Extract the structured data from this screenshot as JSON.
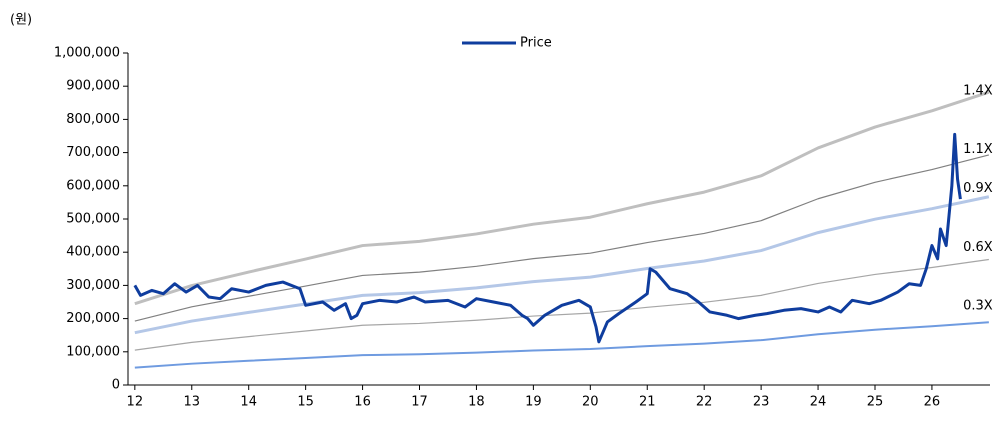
{
  "chart_data": {
    "type": "line",
    "y_label": "(원)",
    "xlim": [
      11.88,
      27.02
    ],
    "xticks": [
      12,
      13,
      14,
      15,
      16,
      17,
      18,
      19,
      20,
      21,
      22,
      23,
      24,
      25,
      26
    ],
    "ylim": [
      0,
      1000000
    ],
    "yticks": [
      0,
      {
        "value": 100000,
        "label": "100,000"
      },
      {
        "value": 200000,
        "label": "200,000"
      },
      {
        "value": 300000,
        "label": "300,000"
      },
      {
        "value": 400000,
        "label": "400,000"
      },
      {
        "value": 500000,
        "label": "500,000"
      },
      {
        "value": 600000,
        "label": "600,000"
      },
      {
        "value": 700000,
        "label": "700,000"
      },
      {
        "value": 800000,
        "label": "800,000"
      },
      {
        "value": 900000,
        "label": "900,000"
      },
      {
        "value": 1000000,
        "label": "1,000,000"
      }
    ],
    "x": [
      12,
      13,
      14,
      15,
      16,
      17,
      18,
      19,
      20,
      21,
      22,
      23,
      24,
      25,
      26,
      27
    ],
    "legend": "top",
    "series": [
      {
        "name": "Price",
        "color": "#0f3d9e",
        "width": 3,
        "x": [
          12.0,
          12.1,
          12.3,
          12.5,
          12.7,
          12.9,
          13.1,
          13.3,
          13.5,
          13.7,
          14.0,
          14.3,
          14.6,
          14.9,
          15.0,
          15.3,
          15.5,
          15.7,
          15.8,
          15.9,
          16.0,
          16.3,
          16.6,
          16.9,
          17.1,
          17.5,
          17.8,
          18.0,
          18.3,
          18.6,
          18.8,
          18.9,
          19.0,
          19.2,
          19.5,
          19.8,
          20.0,
          20.1,
          20.15,
          20.3,
          20.5,
          20.8,
          21.0,
          21.05,
          21.15,
          21.4,
          21.7,
          21.9,
          22.1,
          22.4,
          22.6,
          22.9,
          23.1,
          23.4,
          23.7,
          24.0,
          24.2,
          24.4,
          24.6,
          24.9,
          25.1,
          25.4,
          25.6,
          25.8,
          25.9,
          26.0,
          26.1,
          26.15,
          26.25,
          26.3,
          26.35,
          26.4,
          26.45,
          26.5
        ],
        "values": [
          300000,
          270000,
          285000,
          275000,
          305000,
          280000,
          300000,
          265000,
          260000,
          290000,
          280000,
          300000,
          310000,
          290000,
          240000,
          250000,
          225000,
          245000,
          200000,
          210000,
          245000,
          255000,
          250000,
          265000,
          250000,
          255000,
          235000,
          260000,
          250000,
          240000,
          210000,
          200000,
          180000,
          210000,
          240000,
          255000,
          235000,
          175000,
          130000,
          190000,
          215000,
          250000,
          275000,
          350000,
          340000,
          290000,
          275000,
          250000,
          220000,
          210000,
          200000,
          210000,
          215000,
          225000,
          230000,
          220000,
          235000,
          220000,
          255000,
          245000,
          255000,
          280000,
          305000,
          300000,
          350000,
          420000,
          380000,
          470000,
          420000,
          510000,
          600000,
          755000,
          620000,
          560000
        ]
      },
      {
        "name": "1.4X",
        "color": "#bfbfbf",
        "width": 3,
        "values": [
          245000,
          299600,
          340200,
          379400,
          420000,
          432600,
          455000,
          484400,
          505400,
          546000,
          581000,
          630000,
          714000,
          777000,
          826000,
          882000
        ]
      },
      {
        "name": "1.1X",
        "color": "#808080",
        "width": 1.2,
        "values": [
          192500,
          235400,
          267300,
          298100,
          330000,
          339900,
          357500,
          380600,
          397100,
          429000,
          456500,
          495000,
          561000,
          610500,
          649000,
          693000
        ]
      },
      {
        "name": "0.9X",
        "color": "#b4c7e7",
        "width": 3,
        "values": [
          157500,
          192600,
          218700,
          243900,
          270000,
          278100,
          292500,
          311400,
          324900,
          351000,
          373500,
          405000,
          459000,
          499500,
          531000,
          567000
        ]
      },
      {
        "name": "0.6X",
        "color": "#a6a6a6",
        "width": 1.2,
        "values": [
          105000,
          128400,
          145800,
          162600,
          180000,
          185400,
          195000,
          207600,
          216600,
          234000,
          249000,
          270000,
          306000,
          333000,
          354000,
          378000
        ]
      },
      {
        "name": "0.3X",
        "color": "#6f9be0",
        "width": 2,
        "values": [
          52500,
          64200,
          72900,
          81300,
          90000,
          92700,
          97500,
          103800,
          108300,
          117000,
          124500,
          135000,
          153000,
          166500,
          177000,
          189000
        ]
      }
    ]
  }
}
